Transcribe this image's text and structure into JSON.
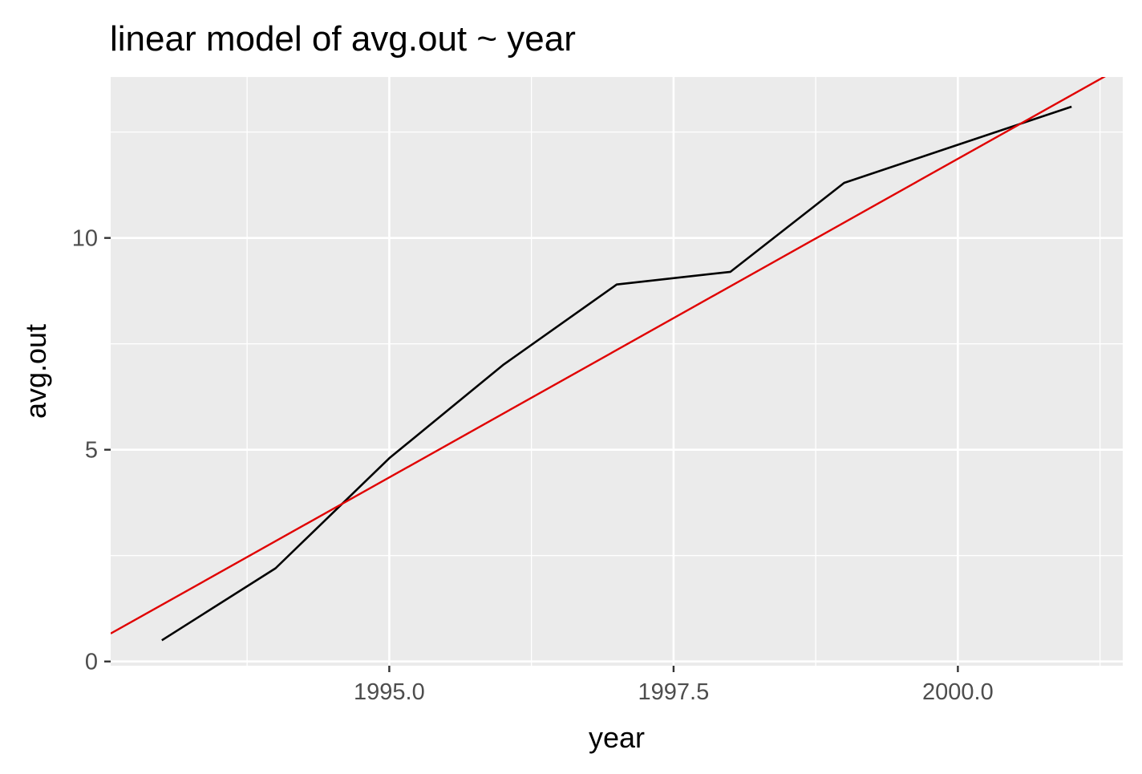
{
  "chart_data": {
    "type": "line",
    "title": "linear model of avg.out ~ year",
    "xlabel": "year",
    "ylabel": "avg.out",
    "xlim": [
      1992.55,
      2001.45
    ],
    "ylim": [
      -0.1,
      13.8
    ],
    "x_major_ticks": [
      1995.0,
      1997.5,
      2000.0
    ],
    "x_tick_labels": [
      "1995.0",
      "1997.5",
      "2000.0"
    ],
    "x_minor_ticks": [
      1993.75,
      1996.25,
      1998.75,
      2001.25
    ],
    "y_major_ticks": [
      0,
      5,
      10
    ],
    "y_tick_labels": [
      "0",
      "5",
      "10"
    ],
    "y_minor_ticks": [
      2.5,
      7.5,
      12.5
    ],
    "grid": true,
    "panel_background": "#ebebeb",
    "grid_color": "#ffffff",
    "series": [
      {
        "color": "#000000",
        "x": [
          1993,
          1994,
          1995,
          1996,
          1997,
          1998,
          1999,
          2000,
          2001
        ],
        "y": [
          0.5,
          2.2,
          4.8,
          7.0,
          8.9,
          9.2,
          11.3,
          12.2,
          13.1
        ]
      }
    ],
    "fit_line": {
      "color": "#e00000",
      "x": [
        1992.55,
        2001.45
      ],
      "y": [
        0.66,
        14.05
      ]
    }
  }
}
